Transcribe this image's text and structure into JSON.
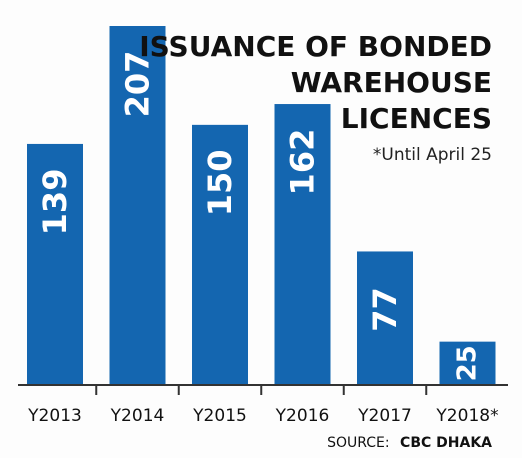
{
  "chart_data": {
    "type": "bar",
    "title_lines": [
      "ISSUANCE OF BONDED",
      "WAREHOUSE",
      "LICENCES"
    ],
    "subtitle": "*Until April 25",
    "categories": [
      "Y2013",
      "Y2014",
      "Y2015",
      "Y2016",
      "Y2017",
      "Y2018*"
    ],
    "values": [
      139,
      207,
      150,
      162,
      77,
      25
    ],
    "data_labels": [
      "139",
      "207",
      "150",
      "162",
      "77",
      "25"
    ],
    "ylim": [
      0,
      207
    ],
    "grid": false,
    "legend": "none",
    "bar_color": "#1466b0",
    "source_label": "SOURCE:",
    "source_name": "CBC DHAKA"
  }
}
